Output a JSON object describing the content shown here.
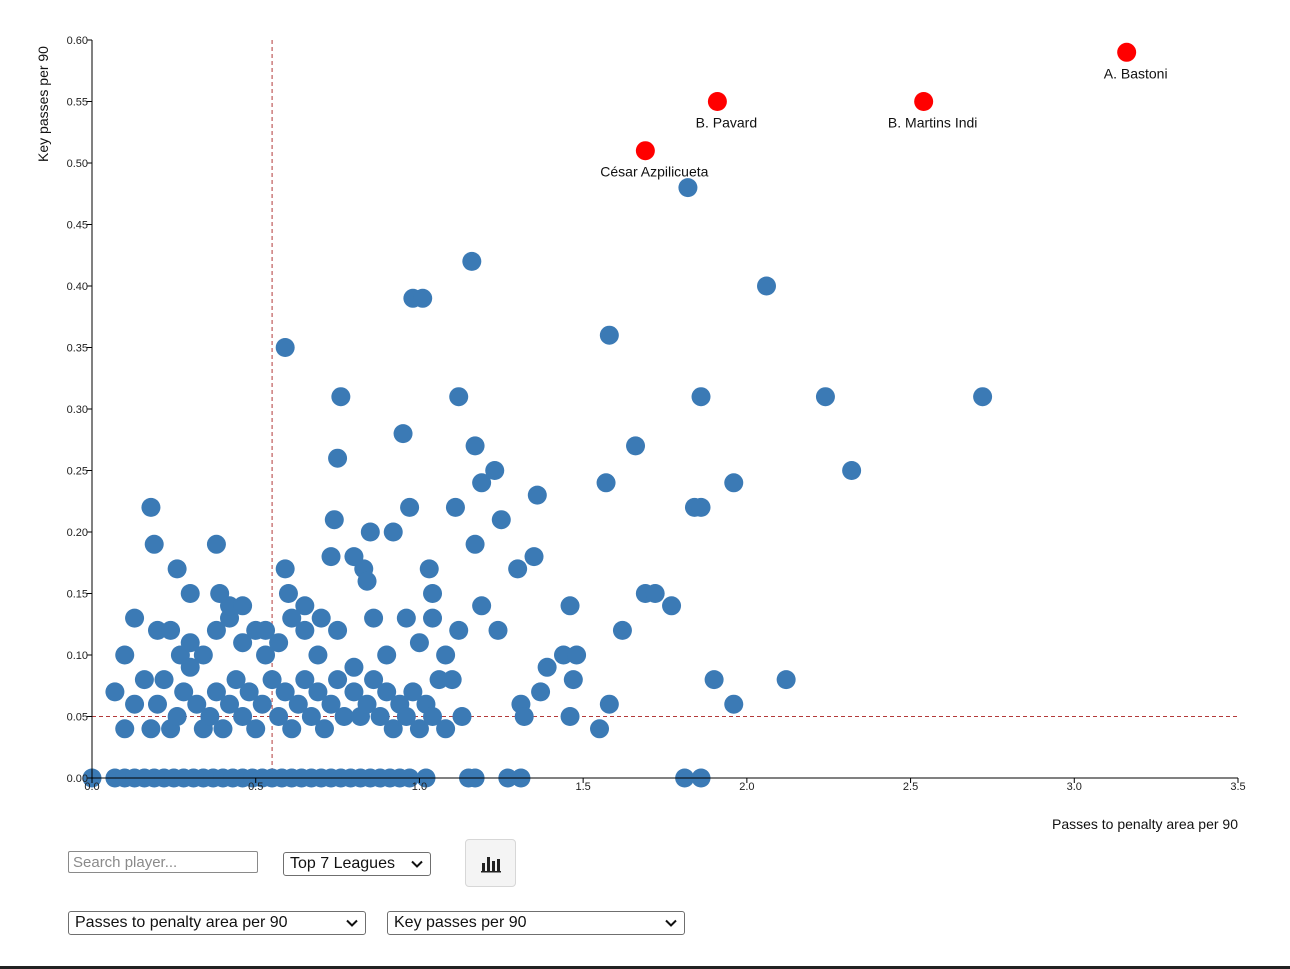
{
  "chart_data": {
    "type": "scatter",
    "title": "",
    "xlabel": "Passes to penalty area per 90",
    "ylabel": "Key passes per 90",
    "xlim": [
      0.0,
      3.5
    ],
    "ylim": [
      0.0,
      0.6
    ],
    "x_ticks": [
      "0.0",
      "0.5",
      "1.0",
      "1.5",
      "2.0",
      "2.5",
      "3.0",
      "3.5"
    ],
    "y_ticks": [
      "0.00",
      "0.05",
      "0.10",
      "0.15",
      "0.20",
      "0.25",
      "0.30",
      "0.35",
      "0.40",
      "0.45",
      "0.50",
      "0.55",
      "0.60"
    ],
    "reference_lines": {
      "x": 0.55,
      "y": 0.05
    },
    "colors": {
      "points": "#3b7ab5",
      "highlight": "#ff0000",
      "reference": "#b33a3a"
    },
    "grid": false,
    "highlighted": [
      {
        "name": "A. Bastoni",
        "x": 3.16,
        "y": 0.59
      },
      {
        "name": "B. Pavard",
        "x": 1.91,
        "y": 0.55
      },
      {
        "name": "B. Martins Indi",
        "x": 2.54,
        "y": 0.55
      },
      {
        "name": "César Azpilicueta",
        "x": 1.69,
        "y": 0.51
      }
    ],
    "points": [
      [
        0.0,
        0.0
      ],
      [
        0.07,
        0.0
      ],
      [
        0.1,
        0.0
      ],
      [
        0.13,
        0.0
      ],
      [
        0.16,
        0.0
      ],
      [
        0.19,
        0.0
      ],
      [
        0.22,
        0.0
      ],
      [
        0.25,
        0.0
      ],
      [
        0.28,
        0.0
      ],
      [
        0.31,
        0.0
      ],
      [
        0.34,
        0.0
      ],
      [
        0.37,
        0.0
      ],
      [
        0.4,
        0.0
      ],
      [
        0.43,
        0.0
      ],
      [
        0.46,
        0.0
      ],
      [
        0.49,
        0.0
      ],
      [
        0.52,
        0.0
      ],
      [
        0.55,
        0.0
      ],
      [
        0.58,
        0.0
      ],
      [
        0.61,
        0.0
      ],
      [
        0.64,
        0.0
      ],
      [
        0.67,
        0.0
      ],
      [
        0.7,
        0.0
      ],
      [
        0.73,
        0.0
      ],
      [
        0.76,
        0.0
      ],
      [
        0.79,
        0.0
      ],
      [
        0.82,
        0.0
      ],
      [
        0.85,
        0.0
      ],
      [
        0.88,
        0.0
      ],
      [
        0.91,
        0.0
      ],
      [
        0.94,
        0.0
      ],
      [
        0.97,
        0.0
      ],
      [
        1.02,
        0.0
      ],
      [
        1.15,
        0.0
      ],
      [
        1.17,
        0.0
      ],
      [
        1.27,
        0.0
      ],
      [
        1.31,
        0.0
      ],
      [
        1.81,
        0.0
      ],
      [
        1.86,
        0.0
      ],
      [
        0.07,
        0.07
      ],
      [
        0.1,
        0.04
      ],
      [
        0.13,
        0.06
      ],
      [
        0.16,
        0.08
      ],
      [
        0.18,
        0.04
      ],
      [
        0.2,
        0.06
      ],
      [
        0.22,
        0.08
      ],
      [
        0.24,
        0.04
      ],
      [
        0.26,
        0.05
      ],
      [
        0.28,
        0.07
      ],
      [
        0.3,
        0.09
      ],
      [
        0.32,
        0.06
      ],
      [
        0.34,
        0.04
      ],
      [
        0.36,
        0.05
      ],
      [
        0.38,
        0.07
      ],
      [
        0.4,
        0.04
      ],
      [
        0.42,
        0.06
      ],
      [
        0.44,
        0.08
      ],
      [
        0.46,
        0.05
      ],
      [
        0.48,
        0.07
      ],
      [
        0.5,
        0.04
      ],
      [
        0.52,
        0.06
      ],
      [
        0.55,
        0.08
      ],
      [
        0.57,
        0.05
      ],
      [
        0.59,
        0.07
      ],
      [
        0.61,
        0.04
      ],
      [
        0.63,
        0.06
      ],
      [
        0.65,
        0.08
      ],
      [
        0.67,
        0.05
      ],
      [
        0.69,
        0.07
      ],
      [
        0.71,
        0.04
      ],
      [
        0.73,
        0.06
      ],
      [
        0.75,
        0.08
      ],
      [
        0.77,
        0.05
      ],
      [
        0.8,
        0.07
      ],
      [
        0.82,
        0.05
      ],
      [
        0.84,
        0.06
      ],
      [
        0.86,
        0.08
      ],
      [
        0.88,
        0.05
      ],
      [
        0.9,
        0.07
      ],
      [
        0.92,
        0.04
      ],
      [
        0.94,
        0.06
      ],
      [
        0.96,
        0.05
      ],
      [
        0.98,
        0.07
      ],
      [
        1.0,
        0.04
      ],
      [
        1.02,
        0.06
      ],
      [
        1.04,
        0.05
      ],
      [
        1.06,
        0.08
      ],
      [
        1.08,
        0.04
      ],
      [
        1.1,
        0.08
      ],
      [
        1.13,
        0.05
      ],
      [
        0.1,
        0.1
      ],
      [
        0.13,
        0.13
      ],
      [
        0.2,
        0.12
      ],
      [
        0.24,
        0.12
      ],
      [
        0.27,
        0.1
      ],
      [
        0.3,
        0.11
      ],
      [
        0.34,
        0.1
      ],
      [
        0.38,
        0.12
      ],
      [
        0.42,
        0.13
      ],
      [
        0.46,
        0.11
      ],
      [
        0.5,
        0.12
      ],
      [
        0.53,
        0.1
      ],
      [
        0.57,
        0.11
      ],
      [
        0.61,
        0.13
      ],
      [
        0.65,
        0.12
      ],
      [
        0.69,
        0.1
      ],
      [
        0.75,
        0.12
      ],
      [
        0.8,
        0.09
      ],
      [
        0.86,
        0.13
      ],
      [
        0.9,
        0.1
      ],
      [
        0.96,
        0.13
      ],
      [
        1.0,
        0.11
      ],
      [
        1.04,
        0.13
      ],
      [
        1.08,
        0.1
      ],
      [
        1.12,
        0.12
      ],
      [
        0.18,
        0.22
      ],
      [
        0.19,
        0.19
      ],
      [
        0.26,
        0.17
      ],
      [
        0.3,
        0.15
      ],
      [
        0.38,
        0.19
      ],
      [
        0.39,
        0.15
      ],
      [
        0.42,
        0.14
      ],
      [
        0.46,
        0.14
      ],
      [
        0.53,
        0.12
      ],
      [
        0.59,
        0.17
      ],
      [
        0.6,
        0.15
      ],
      [
        0.65,
        0.14
      ],
      [
        0.7,
        0.13
      ],
      [
        0.73,
        0.18
      ],
      [
        0.74,
        0.21
      ],
      [
        0.75,
        0.26
      ],
      [
        0.8,
        0.18
      ],
      [
        0.83,
        0.17
      ],
      [
        0.84,
        0.16
      ],
      [
        0.85,
        0.2
      ],
      [
        0.92,
        0.2
      ],
      [
        0.95,
        0.28
      ],
      [
        0.97,
        0.22
      ],
      [
        1.03,
        0.17
      ],
      [
        1.04,
        0.15
      ],
      [
        1.11,
        0.22
      ],
      [
        1.17,
        0.19
      ],
      [
        1.19,
        0.24
      ],
      [
        1.23,
        0.25
      ],
      [
        1.25,
        0.21
      ],
      [
        1.3,
        0.17
      ],
      [
        1.35,
        0.18
      ],
      [
        1.36,
        0.23
      ],
      [
        1.19,
        0.14
      ],
      [
        1.24,
        0.12
      ],
      [
        0.98,
        0.39
      ],
      [
        1.01,
        0.39
      ],
      [
        1.16,
        0.42
      ],
      [
        1.12,
        0.31
      ],
      [
        1.17,
        0.27
      ],
      [
        0.76,
        0.31
      ],
      [
        0.59,
        0.35
      ],
      [
        1.31,
        0.06
      ],
      [
        1.32,
        0.05
      ],
      [
        1.37,
        0.07
      ],
      [
        1.39,
        0.09
      ],
      [
        1.44,
        0.1
      ],
      [
        1.47,
        0.08
      ],
      [
        1.48,
        0.1
      ],
      [
        1.46,
        0.05
      ],
      [
        1.46,
        0.14
      ],
      [
        1.55,
        0.04
      ],
      [
        1.58,
        0.06
      ],
      [
        1.62,
        0.12
      ],
      [
        1.57,
        0.24
      ],
      [
        1.58,
        0.36
      ],
      [
        1.66,
        0.27
      ],
      [
        1.69,
        0.15
      ],
      [
        1.72,
        0.15
      ],
      [
        1.77,
        0.14
      ],
      [
        1.82,
        0.48
      ],
      [
        1.84,
        0.22
      ],
      [
        1.86,
        0.22
      ],
      [
        1.86,
        0.31
      ],
      [
        1.9,
        0.08
      ],
      [
        1.96,
        0.06
      ],
      [
        1.96,
        0.24
      ],
      [
        2.06,
        0.4
      ],
      [
        2.12,
        0.08
      ],
      [
        2.24,
        0.31
      ],
      [
        2.32,
        0.25
      ],
      [
        2.72,
        0.31
      ]
    ]
  },
  "controls": {
    "search_placeholder": "Search player...",
    "league_select": "Top 7 Leagues",
    "chart_button_icon": "bar-chart-icon",
    "x_metric_select": "Passes to penalty area per 90",
    "y_metric_select": "Key passes per 90"
  }
}
